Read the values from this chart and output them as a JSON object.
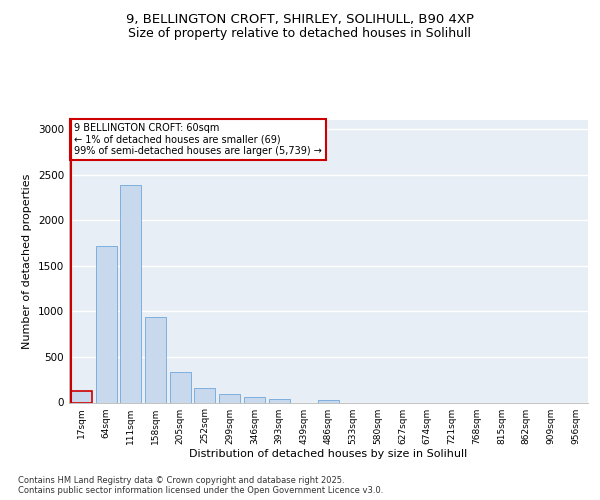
{
  "title_line1": "9, BELLINGTON CROFT, SHIRLEY, SOLIHULL, B90 4XP",
  "title_line2": "Size of property relative to detached houses in Solihull",
  "xlabel": "Distribution of detached houses by size in Solihull",
  "ylabel": "Number of detached properties",
  "categories": [
    "17sqm",
    "64sqm",
    "111sqm",
    "158sqm",
    "205sqm",
    "252sqm",
    "299sqm",
    "346sqm",
    "393sqm",
    "439sqm",
    "486sqm",
    "533sqm",
    "580sqm",
    "627sqm",
    "674sqm",
    "721sqm",
    "768sqm",
    "815sqm",
    "862sqm",
    "909sqm",
    "956sqm"
  ],
  "values": [
    130,
    1720,
    2390,
    940,
    330,
    160,
    90,
    60,
    40,
    0,
    30,
    0,
    0,
    0,
    0,
    0,
    0,
    0,
    0,
    0,
    0
  ],
  "bar_color": "#c9d9ed",
  "bar_edge_color": "#5b9bd5",
  "highlight_bar_index": 0,
  "highlight_color": "#cc0000",
  "annotation_text": "9 BELLINGTON CROFT: 60sqm\n← 1% of detached houses are smaller (69)\n99% of semi-detached houses are larger (5,739) →",
  "annotation_box_color": "#cc0000",
  "ylim": [
    0,
    3100
  ],
  "yticks": [
    0,
    500,
    1000,
    1500,
    2000,
    2500,
    3000
  ],
  "footer_text": "Contains HM Land Registry data © Crown copyright and database right 2025.\nContains public sector information licensed under the Open Government Licence v3.0.",
  "background_color": "#e8eef5",
  "grid_color": "#ffffff",
  "title1_fontsize": 9.5,
  "title2_fontsize": 9,
  "label_fontsize": 8,
  "tick_fontsize": 6.5,
  "annotation_fontsize": 7,
  "footer_fontsize": 6
}
